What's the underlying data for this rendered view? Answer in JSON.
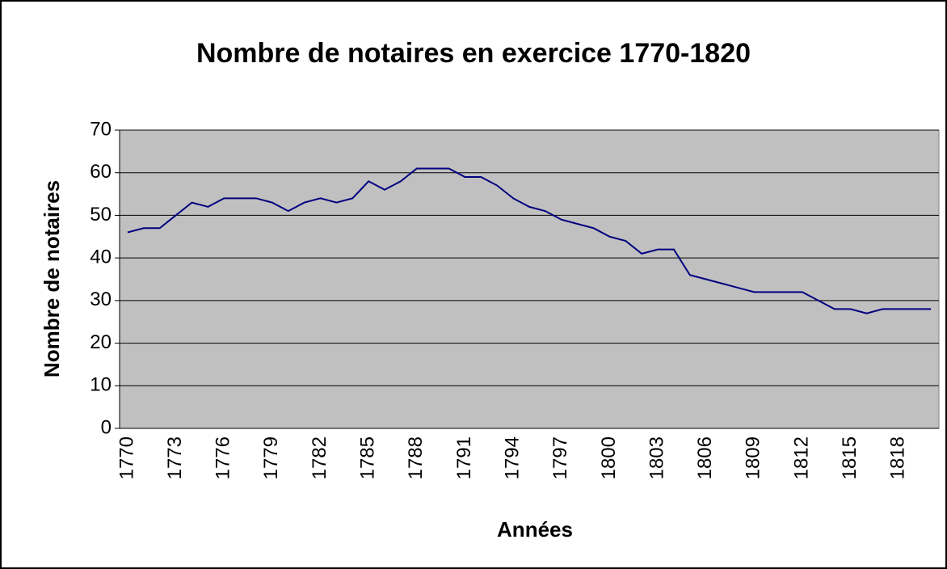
{
  "chart_data": {
    "type": "line",
    "title": "Nombre de notaires en exercice 1770-1820",
    "x_label": "Années",
    "y_label": "Nombre de notaires",
    "categories": [
      "1770",
      null,
      null,
      "1773",
      null,
      null,
      "1776",
      null,
      null,
      "1779",
      null,
      null,
      "1782",
      null,
      null,
      "1785",
      null,
      null,
      "1788",
      null,
      null,
      "1791",
      null,
      null,
      "1794",
      null,
      null,
      "1797",
      null,
      null,
      "1800",
      null,
      null,
      "1803",
      null,
      null,
      "1806",
      null,
      null,
      "1809",
      null,
      null,
      "1812",
      null,
      null,
      "1815",
      null,
      null,
      "1818",
      null,
      null
    ],
    "values": [
      46,
      47,
      47,
      50,
      53,
      52,
      54,
      54,
      54,
      53,
      51,
      53,
      54,
      53,
      54,
      58,
      56,
      58,
      61,
      61,
      61,
      59,
      59,
      57,
      54,
      52,
      51,
      49,
      48,
      47,
      45,
      44,
      41,
      42,
      42,
      36,
      35,
      34,
      33,
      32,
      32,
      32,
      32,
      30,
      28,
      28,
      27,
      28,
      28,
      28,
      28
    ],
    "color": "#000080",
    "ylim": [
      0,
      70
    ],
    "yticks": [
      0,
      10,
      20,
      30,
      40,
      50,
      60,
      70
    ],
    "grid": true,
    "plot_background": "#c0c0c0"
  }
}
